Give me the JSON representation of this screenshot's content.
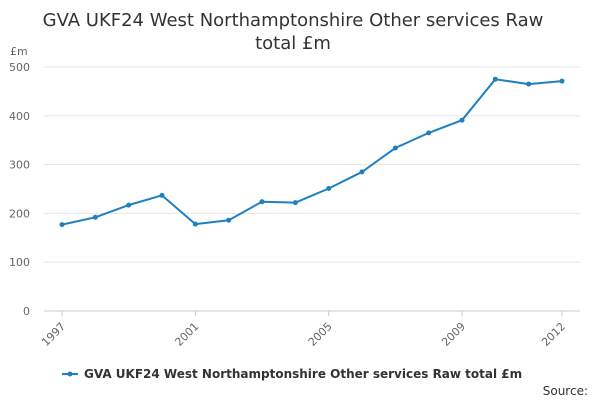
{
  "chart_data": {
    "type": "line",
    "title_lines": [
      "GVA UKF24 West Northamptonshire Other services Raw",
      "total £m"
    ],
    "y_unit": "£m",
    "x": [
      1997,
      1998,
      1999,
      2000,
      2001,
      2002,
      2003,
      2004,
      2005,
      2006,
      2007,
      2008,
      2009,
      2010,
      2011,
      2012
    ],
    "x_tick_labels": [
      "1997",
      "2001",
      "2005",
      "2009",
      "2012"
    ],
    "y_ticks": [
      0,
      100,
      200,
      300,
      400,
      500
    ],
    "ylim": [
      0,
      500
    ],
    "grid": true,
    "series": [
      {
        "name": "GVA UKF24 West Northamptonshire Other services Raw total £m",
        "color": "#1f7fbf",
        "values": [
          177,
          192,
          217,
          237,
          178,
          186,
          224,
          222,
          251,
          285,
          334,
          365,
          391,
          475,
          465,
          471
        ]
      }
    ],
    "legend_position": "bottom",
    "source_label": "Source:"
  }
}
